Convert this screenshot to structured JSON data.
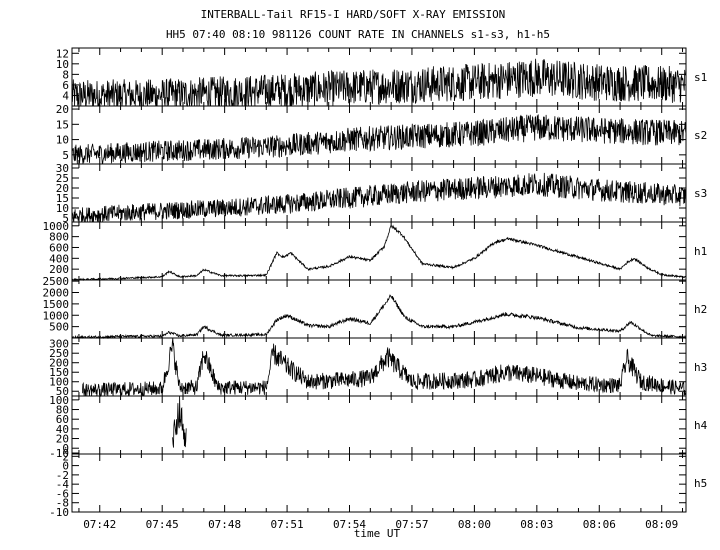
{
  "chart_data": {
    "type": "line",
    "title": "INTERBALL-Tail RF15-I HARD/SOFT X-RAY EMISSION",
    "subtitle": "HH5 07:40 08:10 981126  COUNT RATE IN CHANNELS s1-s3, h1-h5",
    "xlabel": "time UT",
    "xlim": [
      "07:40:40",
      "08:10:10"
    ],
    "x_ticks": [
      "07:42",
      "07:45",
      "07:48",
      "07:51",
      "07:54",
      "07:57",
      "08:00",
      "08:03",
      "08:06",
      "08:09"
    ],
    "grid": false,
    "panels": [
      {
        "name": "s1",
        "yticks": [
          4,
          6,
          8,
          10,
          12
        ],
        "ylim": [
          2,
          13
        ],
        "points": [
          [
            "07:40:40",
            4
          ],
          [
            "07:44:00",
            4
          ],
          [
            "07:48:00",
            4.5
          ],
          [
            "07:51:00",
            5
          ],
          [
            "07:54:00",
            5.5
          ],
          [
            "07:57:00",
            6
          ],
          [
            "08:00:00",
            6.5
          ],
          [
            "08:03:00",
            7.5
          ],
          [
            "08:06:00",
            6.5
          ],
          [
            "08:10:10",
            6
          ]
        ],
        "noise": 2.5
      },
      {
        "name": "s2",
        "yticks": [
          5,
          10,
          15,
          20
        ],
        "ylim": [
          2,
          21
        ],
        "points": [
          [
            "07:40:40",
            5
          ],
          [
            "07:44:00",
            6
          ],
          [
            "07:48:00",
            7
          ],
          [
            "07:51:00",
            8
          ],
          [
            "07:54:00",
            10
          ],
          [
            "07:57:00",
            11
          ],
          [
            "08:00:00",
            12
          ],
          [
            "08:03:00",
            14
          ],
          [
            "08:06:00",
            13
          ],
          [
            "08:10:10",
            12
          ]
        ],
        "noise": 3
      },
      {
        "name": "s3",
        "yticks": [
          5,
          10,
          15,
          20,
          25,
          30
        ],
        "ylim": [
          3,
          32
        ],
        "points": [
          [
            "07:40:40",
            6
          ],
          [
            "07:44:00",
            8
          ],
          [
            "07:48:00",
            10
          ],
          [
            "07:51:00",
            12
          ],
          [
            "07:54:00",
            15
          ],
          [
            "07:57:00",
            18
          ],
          [
            "08:00:00",
            20
          ],
          [
            "08:03:00",
            22
          ],
          [
            "08:06:00",
            19
          ],
          [
            "08:10:10",
            16
          ]
        ],
        "noise": 4
      },
      {
        "name": "h1",
        "yticks": [
          200,
          400,
          600,
          800,
          1000
        ],
        "ylim": [
          0,
          1070
        ],
        "points": [
          [
            "07:40:40",
            5
          ],
          [
            "07:43:00",
            30
          ],
          [
            "07:45:00",
            60
          ],
          [
            "07:45:20",
            160
          ],
          [
            "07:45:50",
            60
          ],
          [
            "07:46:40",
            80
          ],
          [
            "07:47:00",
            190
          ],
          [
            "07:47:50",
            80
          ],
          [
            "07:49:00",
            80
          ],
          [
            "07:50:00",
            90
          ],
          [
            "07:50:30",
            500
          ],
          [
            "07:50:50",
            420
          ],
          [
            "07:51:10",
            500
          ],
          [
            "07:52:00",
            200
          ],
          [
            "07:53:00",
            250
          ],
          [
            "07:54:00",
            430
          ],
          [
            "07:55:00",
            360
          ],
          [
            "07:55:40",
            620
          ],
          [
            "07:56:00",
            1000
          ],
          [
            "07:56:30",
            850
          ],
          [
            "07:57:30",
            300
          ],
          [
            "07:59:00",
            230
          ],
          [
            "08:00:00",
            400
          ],
          [
            "08:01:00",
            700
          ],
          [
            "08:01:40",
            760
          ],
          [
            "08:03:00",
            640
          ],
          [
            "08:05:00",
            420
          ],
          [
            "08:07:00",
            200
          ],
          [
            "08:07:20",
            320
          ],
          [
            "08:07:40",
            400
          ],
          [
            "08:08:20",
            220
          ],
          [
            "08:09:00",
            100
          ],
          [
            "08:10:10",
            50
          ]
        ],
        "noise": 20
      },
      {
        "name": "h2",
        "yticks": [
          500,
          1000,
          1500,
          2000,
          2500
        ],
        "ylim": [
          0,
          2550
        ],
        "points": [
          [
            "07:40:40",
            20
          ],
          [
            "07:43:00",
            70
          ],
          [
            "07:45:00",
            80
          ],
          [
            "07:45:20",
            250
          ],
          [
            "07:45:50",
            90
          ],
          [
            "07:46:40",
            150
          ],
          [
            "07:47:00",
            500
          ],
          [
            "07:47:50",
            120
          ],
          [
            "07:50:00",
            150
          ],
          [
            "07:50:30",
            800
          ],
          [
            "07:51:00",
            1000
          ],
          [
            "07:52:00",
            550
          ],
          [
            "07:53:00",
            500
          ],
          [
            "07:54:00",
            850
          ],
          [
            "07:55:00",
            650
          ],
          [
            "07:56:00",
            1850
          ],
          [
            "07:56:40",
            900
          ],
          [
            "07:57:30",
            500
          ],
          [
            "07:59:00",
            500
          ],
          [
            "08:00:00",
            700
          ],
          [
            "08:01:30",
            1050
          ],
          [
            "08:03:00",
            900
          ],
          [
            "08:05:00",
            450
          ],
          [
            "08:07:00",
            300
          ],
          [
            "08:07:30",
            700
          ],
          [
            "08:08:00",
            400
          ],
          [
            "08:08:30",
            100
          ],
          [
            "08:10:10",
            50
          ]
        ],
        "noise": 70
      },
      {
        "name": "h3",
        "yticks": [
          50,
          100,
          150,
          200,
          250,
          300
        ],
        "ylim": [
          25,
          330
        ],
        "start": "07:41:10",
        "points": [
          [
            "07:41:10",
            55
          ],
          [
            "07:45:00",
            65
          ],
          [
            "07:45:30",
            290
          ],
          [
            "07:45:50",
            70
          ],
          [
            "07:46:40",
            70
          ],
          [
            "07:47:00",
            250
          ],
          [
            "07:47:40",
            70
          ],
          [
            "07:50:00",
            70
          ],
          [
            "07:50:20",
            250
          ],
          [
            "07:51:00",
            180
          ],
          [
            "07:52:00",
            100
          ],
          [
            "07:54:00",
            110
          ],
          [
            "07:55:00",
            120
          ],
          [
            "07:55:50",
            230
          ],
          [
            "07:57:00",
            100
          ],
          [
            "08:00:00",
            110
          ],
          [
            "08:01:30",
            150
          ],
          [
            "08:03:00",
            130
          ],
          [
            "08:05:00",
            90
          ],
          [
            "08:07:00",
            80
          ],
          [
            "08:07:20",
            220
          ],
          [
            "08:08:00",
            100
          ],
          [
            "08:10:10",
            60
          ]
        ],
        "noise": 40
      },
      {
        "name": "h4",
        "yticks": [
          -10,
          0,
          20,
          40,
          60,
          80,
          100
        ],
        "ylim": [
          -12,
          108
        ],
        "points": [
          [
            "07:45:30",
            10
          ],
          [
            "07:45:40",
            55
          ],
          [
            "07:45:50",
            80
          ],
          [
            "07:46:00",
            40
          ],
          [
            "07:46:10",
            20
          ]
        ],
        "noise": 25
      },
      {
        "name": "h5",
        "yticks": [
          -10,
          -8,
          -6,
          -4,
          -2,
          0,
          2
        ],
        "ylim": [
          -10,
          2.5
        ],
        "points": [],
        "noise": 0
      }
    ]
  }
}
